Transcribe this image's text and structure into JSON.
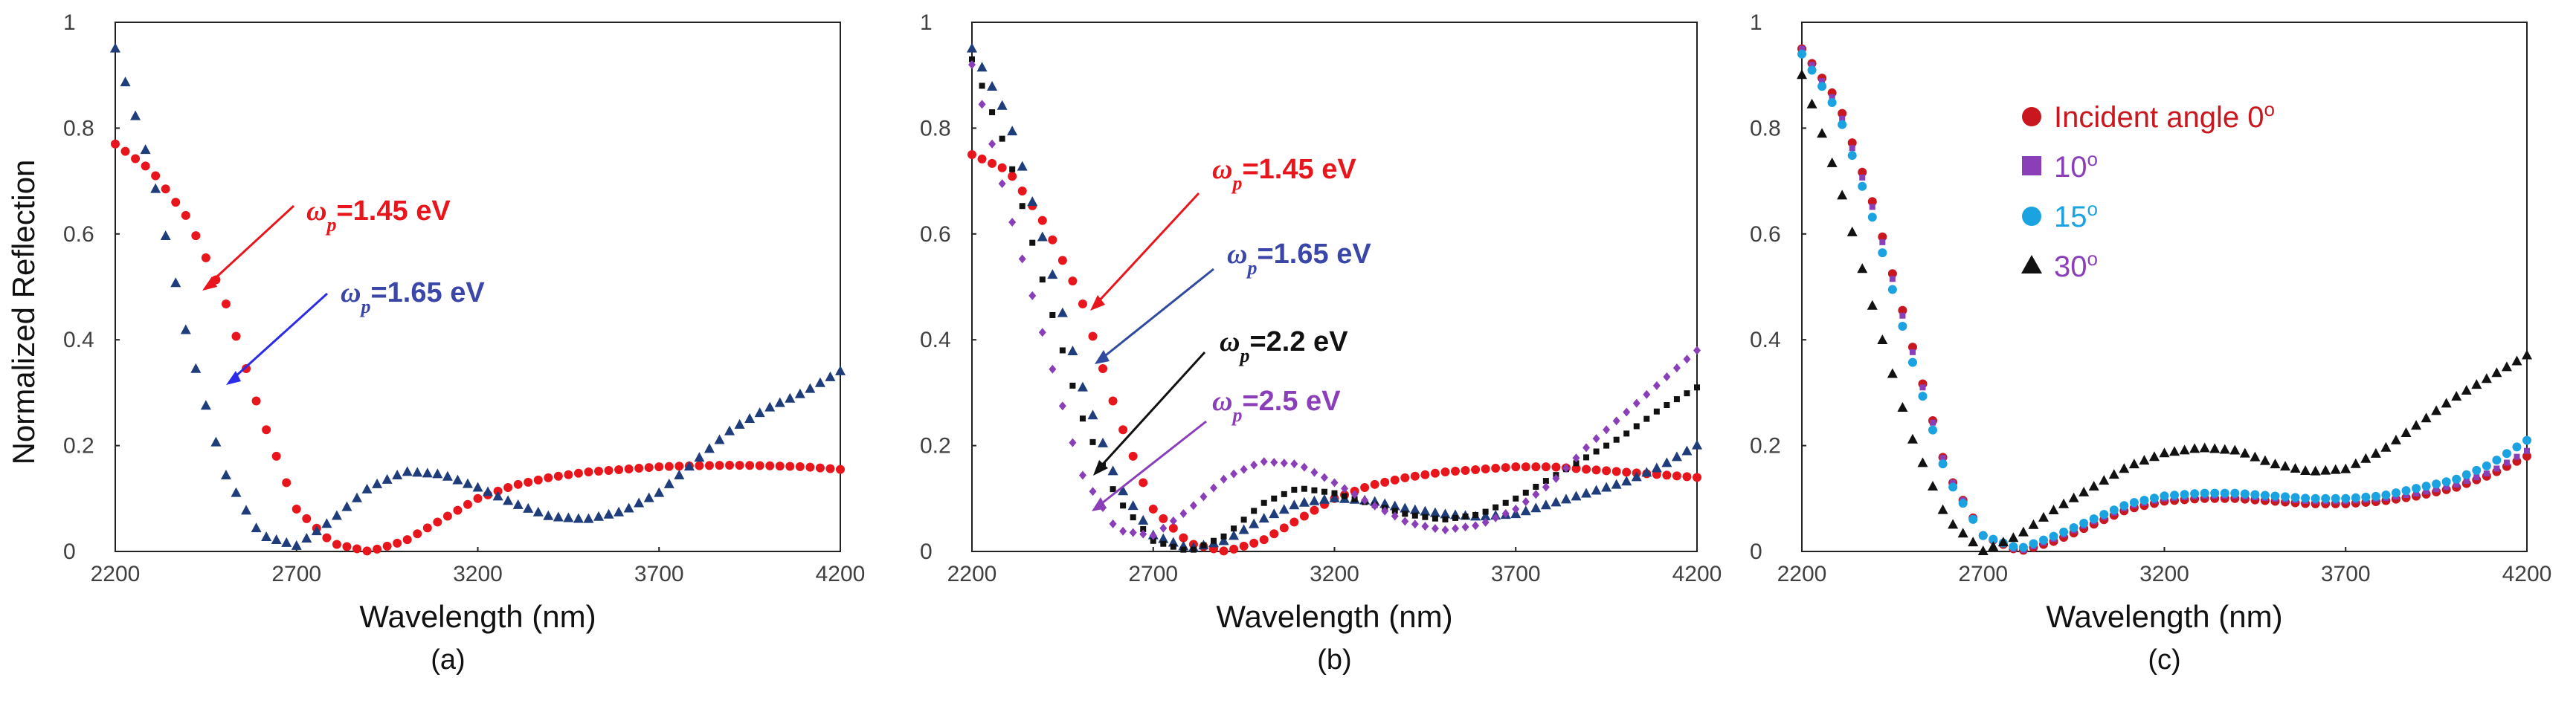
{
  "chart_data": [
    {
      "type": "scatter",
      "panel_label": "(a)",
      "xlabel": "Wavelength (nm)",
      "ylabel": "Normalized Reflection",
      "xlim": [
        2200,
        4200
      ],
      "ylim": [
        0,
        1
      ],
      "xticks": [
        "2200",
        "2700",
        "3200",
        "3700",
        "4200"
      ],
      "yticks": [
        "0",
        "0.2",
        "0.4",
        "0.6",
        "0.8",
        "1"
      ],
      "series": [
        {
          "name": "ωp=1.45 eV",
          "color": "#e8161c",
          "marker": "circle",
          "x": [
            2200,
            2300,
            2400,
            2500,
            2600,
            2700,
            2800,
            2900,
            3000,
            3100,
            3200,
            3300,
            3400,
            3500,
            3600,
            3700,
            3800,
            3900,
            4000,
            4100,
            4200
          ],
          "y": [
            0.77,
            0.72,
            0.63,
            0.48,
            0.26,
            0.08,
            0.015,
            0.0,
            0.02,
            0.06,
            0.1,
            0.125,
            0.14,
            0.15,
            0.155,
            0.16,
            0.162,
            0.163,
            0.162,
            0.16,
            0.155
          ]
        },
        {
          "name": "ωp=1.65 eV",
          "color": "#1f3d7a",
          "marker": "triangle",
          "x": [
            2200,
            2300,
            2400,
            2500,
            2600,
            2700,
            2800,
            2900,
            3000,
            3100,
            3200,
            3300,
            3400,
            3500,
            3600,
            3700,
            3800,
            3900,
            4000,
            4100,
            4200
          ],
          "y": [
            0.95,
            0.72,
            0.4,
            0.15,
            0.03,
            0.01,
            0.06,
            0.12,
            0.15,
            0.145,
            0.12,
            0.09,
            0.065,
            0.06,
            0.075,
            0.11,
            0.17,
            0.23,
            0.27,
            0.3,
            0.34
          ]
        }
      ],
      "annotations": [
        {
          "symbol": "ω",
          "sub": "p",
          "rest": "=1.45 eV",
          "color": "#e8161c"
        },
        {
          "symbol": "ω",
          "sub": "p",
          "rest": "=1.65 eV",
          "color": "#3a46a8"
        }
      ]
    },
    {
      "type": "scatter",
      "panel_label": "(b)",
      "xlabel": "Wavelength (nm)",
      "xlim": [
        2200,
        4200
      ],
      "ylim": [
        0,
        1
      ],
      "xticks": [
        "2200",
        "2700",
        "3200",
        "3700",
        "4200"
      ],
      "yticks": [
        "0",
        "0.2",
        "0.4",
        "0.6",
        "0.8",
        "1"
      ],
      "series": [
        {
          "name": "ωp=1.45 eV",
          "color": "#e8161c",
          "marker": "circle",
          "x": [
            2200,
            2300,
            2400,
            2500,
            2600,
            2700,
            2800,
            2900,
            3000,
            3100,
            3200,
            3300,
            3400,
            3500,
            3600,
            3700,
            3800,
            3900,
            4000,
            4100,
            4200
          ],
          "y": [
            0.75,
            0.72,
            0.62,
            0.48,
            0.26,
            0.08,
            0.015,
            0.0,
            0.02,
            0.06,
            0.1,
            0.125,
            0.14,
            0.15,
            0.155,
            0.16,
            0.16,
            0.155,
            0.15,
            0.145,
            0.14
          ]
        },
        {
          "name": "ωp=1.65 eV",
          "color": "#1f3d7a",
          "marker": "triangle",
          "x": [
            2200,
            2300,
            2400,
            2500,
            2600,
            2700,
            2800,
            2900,
            3000,
            3100,
            3200,
            3300,
            3400,
            3500,
            3600,
            3700,
            3800,
            3900,
            4000,
            4100,
            4200
          ],
          "y": [
            0.95,
            0.82,
            0.58,
            0.32,
            0.13,
            0.03,
            0.005,
            0.02,
            0.06,
            0.09,
            0.1,
            0.095,
            0.08,
            0.07,
            0.065,
            0.07,
            0.09,
            0.11,
            0.13,
            0.16,
            0.2
          ]
        },
        {
          "name": "ωp=2.2 eV",
          "color": "#111111",
          "marker": "square",
          "x": [
            2200,
            2300,
            2400,
            2500,
            2600,
            2700,
            2800,
            2900,
            3000,
            3100,
            3200,
            3300,
            3400,
            3500,
            3600,
            3700,
            3800,
            3900,
            4000,
            4100,
            4200
          ],
          "y": [
            0.93,
            0.75,
            0.5,
            0.26,
            0.1,
            0.02,
            0.0,
            0.03,
            0.09,
            0.12,
            0.11,
            0.09,
            0.07,
            0.06,
            0.07,
            0.1,
            0.14,
            0.18,
            0.22,
            0.27,
            0.31
          ]
        },
        {
          "name": "ωp=2.5 eV",
          "color": "#8a3fb8",
          "marker": "diamond",
          "x": [
            2200,
            2300,
            2400,
            2500,
            2600,
            2700,
            2800,
            2900,
            3000,
            3100,
            3200,
            3300,
            3400,
            3500,
            3600,
            3700,
            3800,
            3900,
            4000,
            4100,
            4200
          ],
          "y": [
            0.92,
            0.65,
            0.4,
            0.15,
            0.04,
            0.03,
            0.08,
            0.14,
            0.17,
            0.165,
            0.13,
            0.09,
            0.055,
            0.04,
            0.05,
            0.08,
            0.13,
            0.2,
            0.26,
            0.32,
            0.38
          ]
        }
      ],
      "annotations": [
        {
          "symbol": "ω",
          "sub": "p",
          "rest": "=1.45 eV",
          "color": "#e8161c"
        },
        {
          "symbol": "ω",
          "sub": "p",
          "rest": "=1.65 eV",
          "color": "#3a46a8"
        },
        {
          "symbol": "ω",
          "sub": "p",
          "rest": "=2.2 eV",
          "color": "#111111"
        },
        {
          "symbol": "ω",
          "sub": "p",
          "rest": "=2.5 eV",
          "color": "#8a3fb8"
        }
      ]
    },
    {
      "type": "scatter",
      "panel_label": "(c)",
      "xlabel": "Wavelength (nm)",
      "xlim": [
        2200,
        4200
      ],
      "ylim": [
        0,
        1
      ],
      "xticks": [
        "2200",
        "2700",
        "3200",
        "3700",
        "4200"
      ],
      "yticks": [
        "0",
        "0.2",
        "0.4",
        "0.6",
        "0.8",
        "1"
      ],
      "legend_position": "top-center",
      "series": [
        {
          "name": "Incident angle 0",
          "sup": "o",
          "legend_color": "#c8171e",
          "color": "#c8171e",
          "marker": "circle",
          "x": [
            2200,
            2300,
            2400,
            2500,
            2600,
            2700,
            2800,
            2900,
            3000,
            3100,
            3200,
            3300,
            3400,
            3500,
            3600,
            3700,
            3800,
            3900,
            4000,
            4100,
            4200
          ],
          "y": [
            0.95,
            0.85,
            0.65,
            0.4,
            0.15,
            0.03,
            0.0,
            0.02,
            0.05,
            0.08,
            0.095,
            0.1,
            0.1,
            0.095,
            0.09,
            0.09,
            0.095,
            0.105,
            0.12,
            0.145,
            0.18
          ]
        },
        {
          "name": "10",
          "sup": "o",
          "legend_color": "#8a3fb8",
          "color": "#8a3fb8",
          "marker": "square",
          "x": [
            2200,
            2300,
            2400,
            2500,
            2600,
            2700,
            2800,
            2900,
            3000,
            3100,
            3200,
            3300,
            3400,
            3500,
            3600,
            3700,
            3800,
            3900,
            4000,
            4100,
            4200
          ],
          "y": [
            0.95,
            0.84,
            0.64,
            0.39,
            0.15,
            0.03,
            0.0,
            0.025,
            0.055,
            0.085,
            0.1,
            0.105,
            0.105,
            0.1,
            0.095,
            0.095,
            0.1,
            0.11,
            0.125,
            0.15,
            0.19
          ]
        },
        {
          "name": "15",
          "sup": "o",
          "legend_color": "#1aa3e0",
          "color": "#1aa3e0",
          "marker": "circle",
          "x": [
            2200,
            2300,
            2400,
            2500,
            2600,
            2700,
            2800,
            2900,
            3000,
            3100,
            3200,
            3300,
            3400,
            3500,
            3600,
            3700,
            3800,
            3900,
            4000,
            4100,
            4200
          ],
          "y": [
            0.94,
            0.83,
            0.62,
            0.37,
            0.14,
            0.03,
            0.005,
            0.03,
            0.06,
            0.09,
            0.105,
            0.11,
            0.11,
            0.105,
            0.1,
            0.1,
            0.105,
            0.12,
            0.135,
            0.165,
            0.21
          ]
        },
        {
          "name": "30",
          "sup": "o",
          "legend_color": "#8a3fb8",
          "color": "#111111",
          "marker": "triangle",
          "x": [
            2200,
            2300,
            2400,
            2500,
            2600,
            2700,
            2800,
            2900,
            3000,
            3100,
            3200,
            3300,
            3400,
            3500,
            3600,
            3700,
            3800,
            3900,
            4000,
            4100,
            4200
          ],
          "y": [
            0.9,
            0.7,
            0.45,
            0.22,
            0.06,
            0.0,
            0.03,
            0.08,
            0.12,
            0.16,
            0.185,
            0.195,
            0.19,
            0.165,
            0.15,
            0.155,
            0.19,
            0.24,
            0.29,
            0.33,
            0.37
          ]
        }
      ]
    }
  ]
}
